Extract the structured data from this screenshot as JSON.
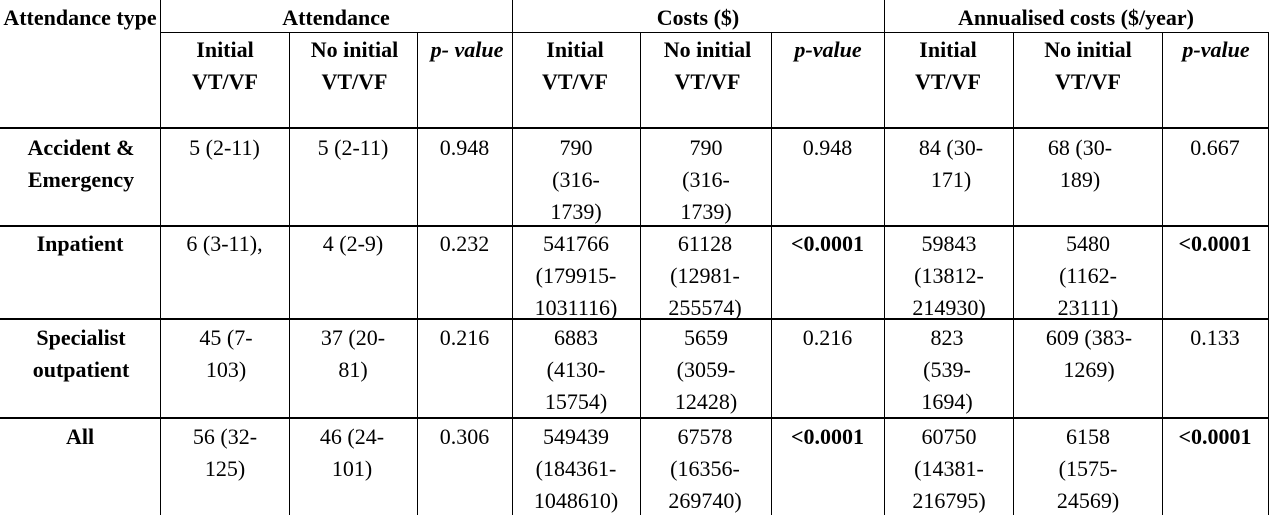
{
  "headers": {
    "attendance_type": "Attendance type",
    "group_attendance": "Attendance",
    "group_costs": "Costs ($)",
    "group_annualised": "Annualised costs ($/year)",
    "initial": "Initial VT/VF",
    "no_initial_stacked": "No initial VT/VF",
    "no_initial_wide": "No initial VT/VF",
    "p_value_split": "p- value",
    "p_value": "p-value"
  },
  "rows": [
    {
      "label": "Accident & Emergency",
      "att_initial": "5 (2-11)",
      "att_no_initial": "5 (2-11)",
      "att_p": "0.948",
      "cost_initial": "790 (316- 1739)",
      "cost_no_initial": "790 (316- 1739)",
      "cost_p": "0.948",
      "ann_initial": "84 (30- 171)",
      "ann_no_initial": "68 (30- 189)",
      "ann_p": "0.667"
    },
    {
      "label": "Inpatient",
      "att_initial": "6 (3-11),",
      "att_no_initial": "4 (2-9)",
      "att_p": "0.232",
      "cost_initial": "541766 (179915- 1031116)",
      "cost_no_initial": "61128 (12981- 255574)",
      "cost_p": "<0.0001",
      "ann_initial": "59843 (13812- 214930)",
      "ann_no_initial": "5480 (1162- 23111)",
      "ann_p": "<0.0001"
    },
    {
      "label": "Specialist outpatient",
      "att_initial": "45 (7- 103)",
      "att_no_initial": "37 (20- 81)",
      "att_p": "0.216",
      "cost_initial": "6883 (4130- 15754)",
      "cost_no_initial": "5659 (3059- 12428)",
      "cost_p": "0.216",
      "ann_initial": "823 (539- 1694)",
      "ann_no_initial": "609 (383- 1269)",
      "ann_p": "0.133"
    },
    {
      "label": "All",
      "att_initial": "56 (32- 125)",
      "att_no_initial": "46 (24- 101)",
      "att_p": "0.306",
      "cost_initial": "549439 (184361- 1048610)",
      "cost_no_initial": "67578 (16356- 269740)",
      "cost_p": "<0.0001",
      "ann_initial": "60750 (14381- 216795)",
      "ann_no_initial": "6158 (1575- 24569)",
      "ann_p": "<0.0001"
    }
  ]
}
